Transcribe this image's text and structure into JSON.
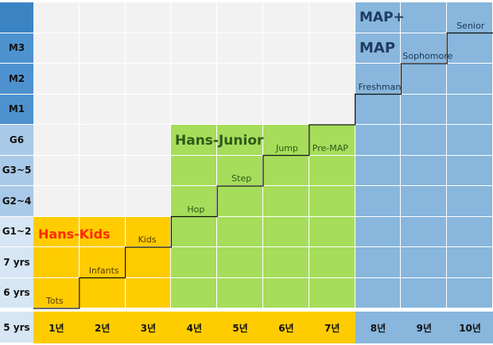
{
  "rows": [
    "M3",
    "M2",
    "M1",
    "G6",
    "G3~5",
    "G2~4",
    "G1~2",
    "7 yrs",
    "6 yrs",
    "5 yrs"
  ],
  "columns": [
    "1년",
    "2년",
    "3년",
    "4년",
    "5년",
    "6년",
    "7년",
    "8년",
    "9년",
    "10년"
  ],
  "programs": [
    {
      "name": "Hans-Kids",
      "color": "#ff2a00"
    },
    {
      "name": "Hans-Junior",
      "color": "#2f5a18"
    },
    {
      "name": "MAP",
      "color": "#1f3c63"
    },
    {
      "name": "MAP+",
      "color": "#1f3c63"
    }
  ],
  "levels": [
    "Tots",
    "Infants",
    "Kids",
    "Hop",
    "Step",
    "Jump",
    "Pre-MAP",
    "Freshman",
    "Sophomore",
    "Senior"
  ],
  "colors": {
    "kids": "#ffcc00",
    "junior": "#a6dd5b",
    "map": "#88b6dc",
    "empty": "#f2f2f2",
    "label_col": "#c7dbef",
    "label_col_dark": "#3a84c4",
    "bottom_row": "#ffcc00"
  }
}
